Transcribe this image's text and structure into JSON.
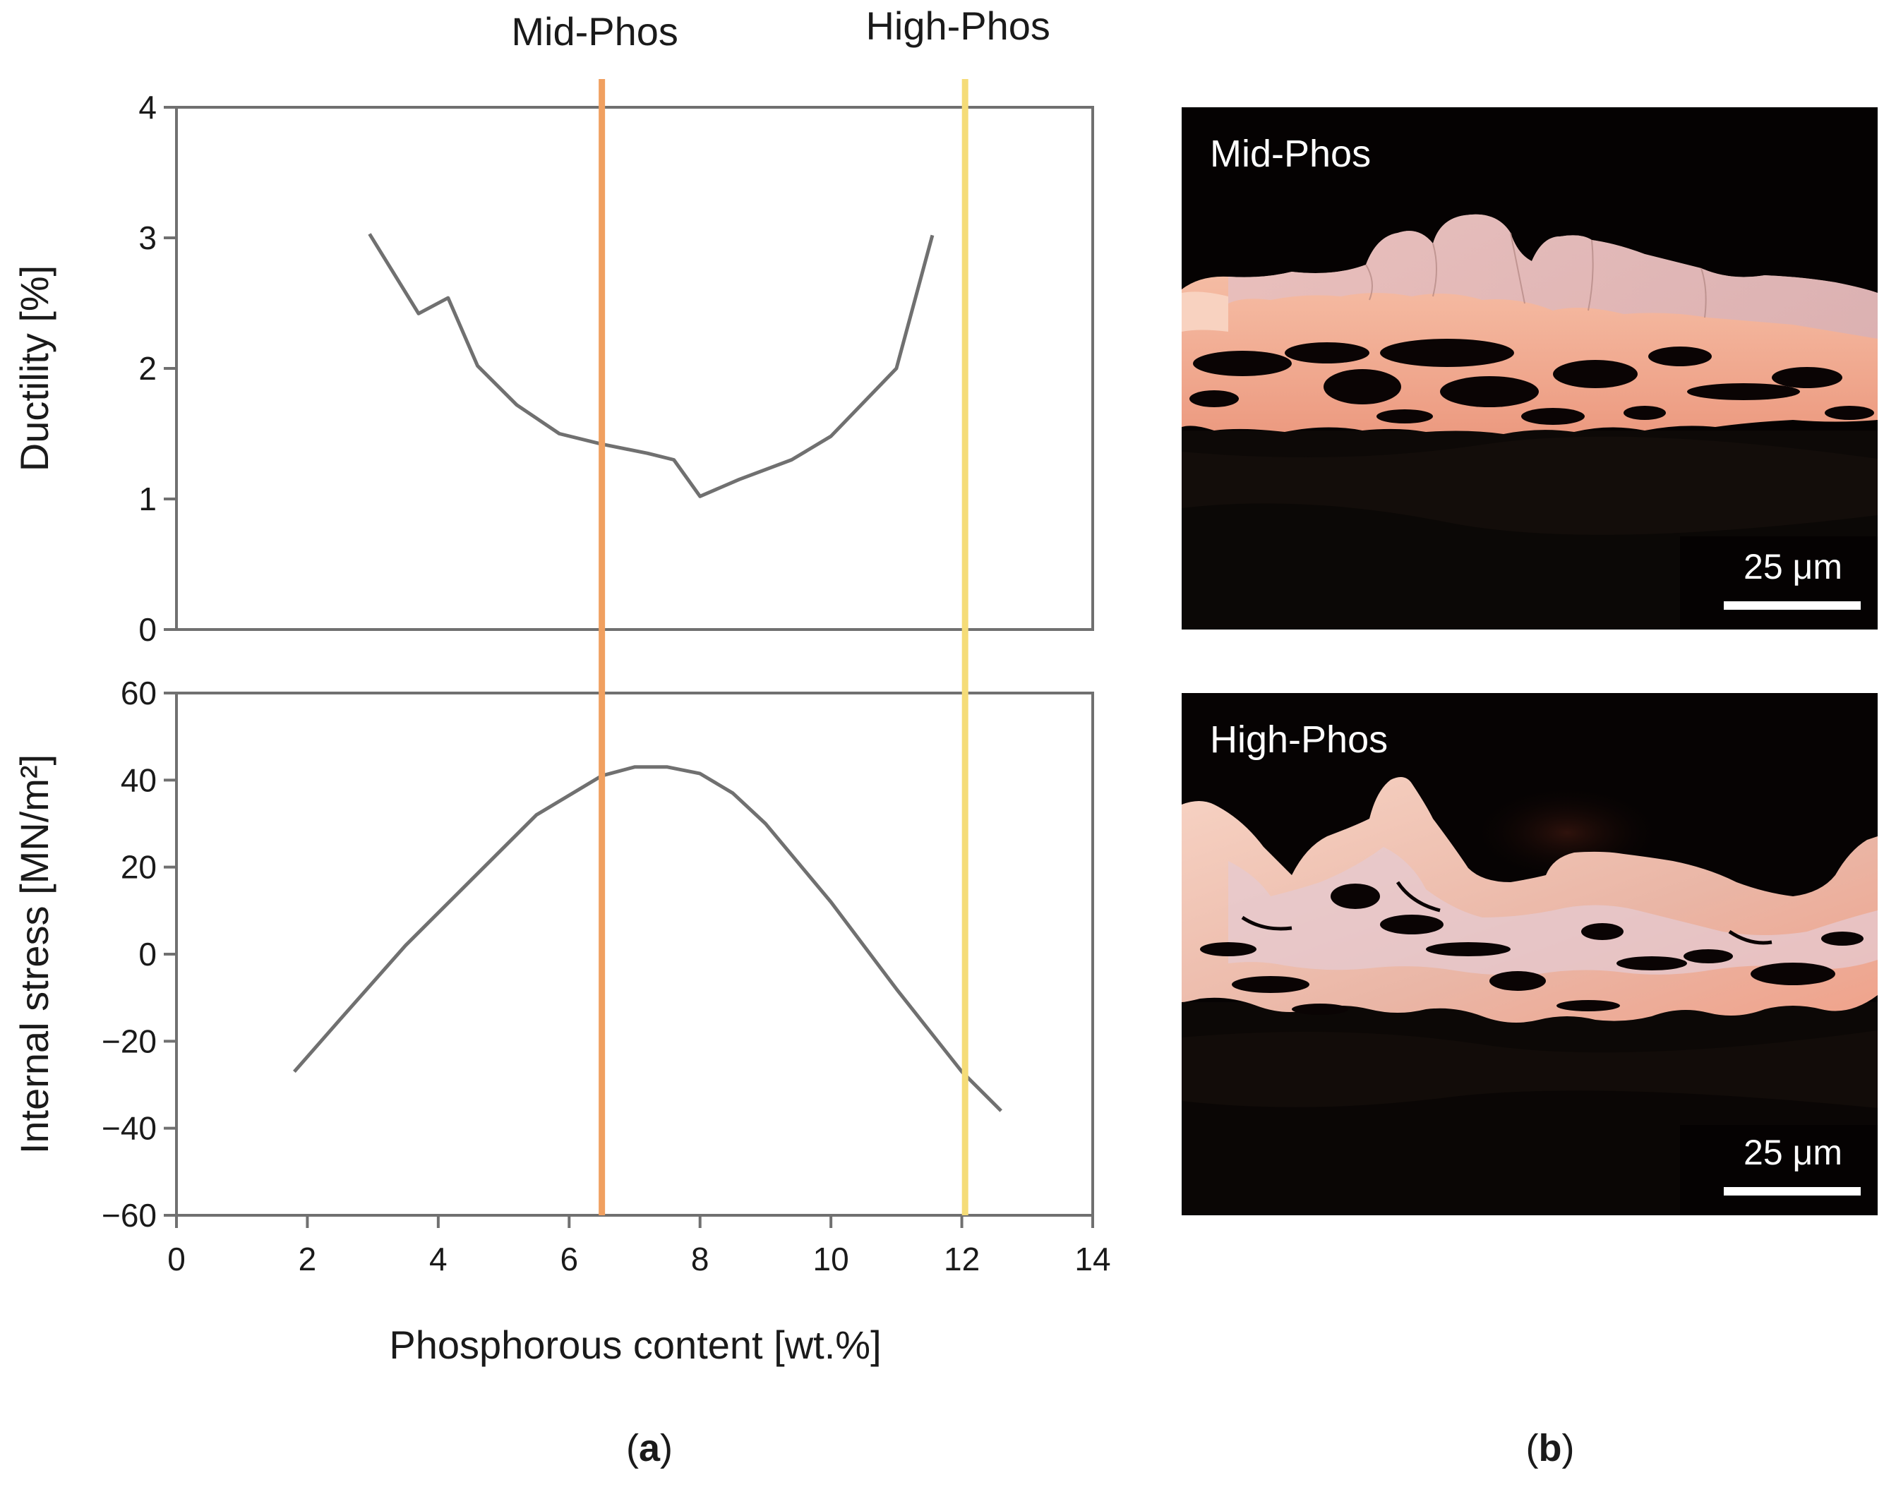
{
  "figure": {
    "panel_a_label": "a",
    "panel_b_label": "b"
  },
  "chart_data": [
    {
      "type": "line",
      "panel": "a-top",
      "ylabel": "Ductility [%]",
      "ylim": [
        0,
        4
      ],
      "yticks": [
        0,
        1,
        2,
        3,
        4
      ],
      "xlim": [
        0,
        14
      ],
      "grid": false,
      "series": [
        {
          "color": "#707070",
          "x": [
            2.95,
            3.7,
            4.15,
            4.6,
            5.2,
            5.85,
            6.5,
            7.2,
            7.6,
            8.0,
            8.6,
            9.4,
            10.0,
            11.0,
            11.55
          ],
          "y": [
            3.03,
            2.42,
            2.54,
            2.02,
            1.72,
            1.5,
            1.42,
            1.35,
            1.3,
            1.02,
            1.15,
            1.3,
            1.48,
            2.0,
            3.02
          ]
        }
      ]
    },
    {
      "type": "line",
      "panel": "a-bottom",
      "ylabel": "Internal stress [MN/m²]",
      "xlabel": "Phosphorous content [wt.%]",
      "ylim": [
        -60,
        60
      ],
      "yticks": [
        -60,
        -40,
        -20,
        0,
        20,
        40,
        60
      ],
      "ytick_labels": [
        "−60",
        "−40",
        "−20",
        "0",
        "20",
        "40",
        "60"
      ],
      "xlim": [
        0,
        14
      ],
      "xticks": [
        0,
        2,
        4,
        6,
        8,
        10,
        12,
        14
      ],
      "grid": false,
      "series": [
        {
          "color": "#707070",
          "x": [
            1.8,
            2.5,
            3.5,
            4.5,
            5.5,
            6.5,
            7.0,
            7.5,
            8.0,
            8.5,
            9.0,
            10.0,
            11.0,
            12.0,
            12.6
          ],
          "y": [
            -27,
            -15,
            2,
            17,
            32,
            41,
            43,
            43,
            41.5,
            37,
            30,
            12,
            -8,
            -27,
            -36
          ]
        }
      ]
    }
  ],
  "markers": [
    {
      "label": "Mid-Phos",
      "x": 6.5,
      "color": "#F0A060"
    },
    {
      "label": "High-Phos",
      "x": 12.05,
      "color": "#F5DC78"
    }
  ],
  "photos": [
    {
      "label": "Mid-Phos",
      "scale_label": "25 μm"
    },
    {
      "label": "High-Phos",
      "scale_label": "25 μm"
    }
  ]
}
